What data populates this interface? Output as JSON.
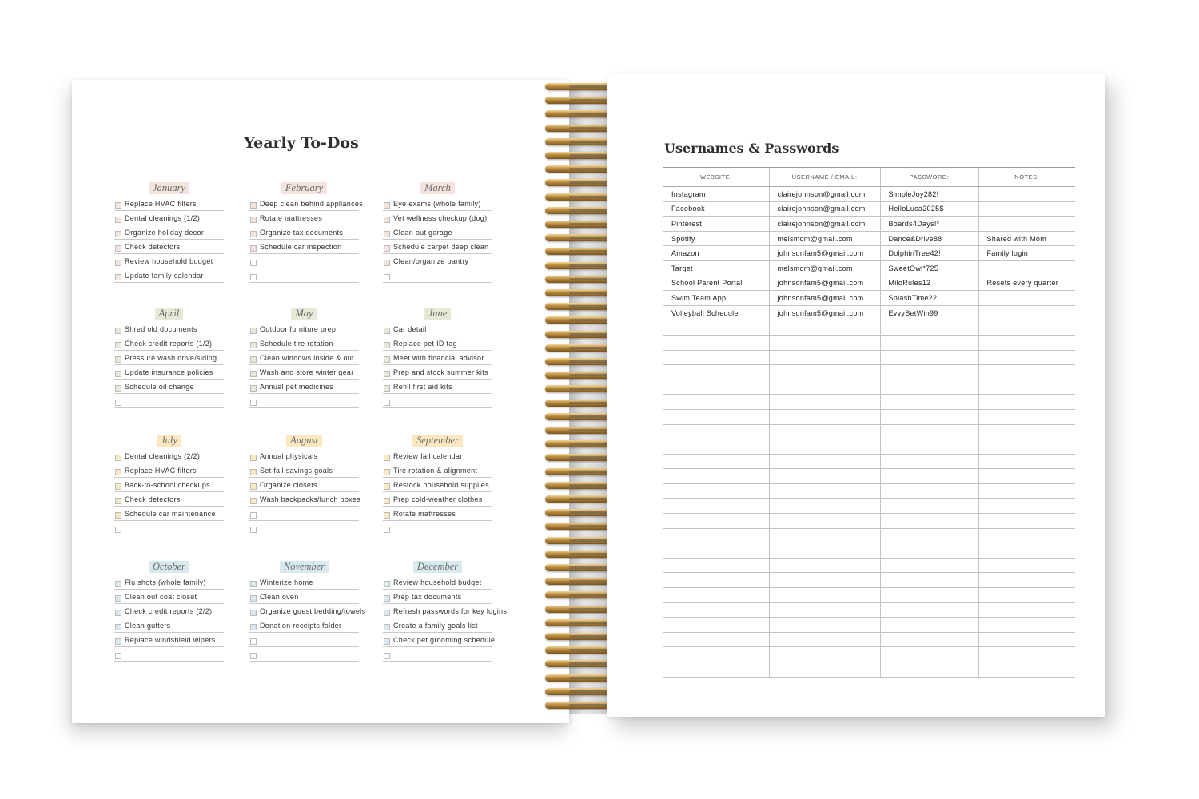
{
  "left_page": {
    "title": "Yearly To-Dos",
    "months": [
      {
        "name": "January",
        "color": "#f3e4e0",
        "tasks": [
          "Replace HVAC filters",
          "Dental cleanings (1/2)",
          "Organize holiday decor",
          "Check detectors",
          "Review household budget",
          "Update family calendar"
        ]
      },
      {
        "name": "February",
        "color": "#f3e4e0",
        "tasks": [
          "Deep clean behind appliances",
          "Rotate mattresses",
          "Organize tax documents",
          "Schedule car inspection",
          "",
          ""
        ]
      },
      {
        "name": "March",
        "color": "#f3e4e0",
        "tasks": [
          "Eye exams (whole family)",
          "Vet wellness checkup (dog)",
          "Clean out garage",
          "Schedule carpet deep clean",
          "Clean/organize pantry",
          ""
        ]
      },
      {
        "name": "April",
        "color": "#e6e9d5",
        "tasks": [
          "Shred old documents",
          "Check credit reports (1/2)",
          "Pressure wash drive/siding",
          "Update insurance policies",
          "Schedule oil change",
          ""
        ]
      },
      {
        "name": "May",
        "color": "#e6e9d5",
        "tasks": [
          "Outdoor furniture prep",
          "Schedule tire rotation",
          "Clean windows inside & out",
          "Wash and store winter gear",
          "Annual pet medicines",
          ""
        ]
      },
      {
        "name": "June",
        "color": "#e6e9d5",
        "tasks": [
          "Car detail",
          "Replace pet ID tag",
          "Meet with financial advisor",
          "Prep and stock summer kits",
          "Refill first aid kits",
          ""
        ]
      },
      {
        "name": "July",
        "color": "#fbe8c0",
        "tasks": [
          "Dental cleanings (2/2)",
          "Replace HVAC filters",
          "Back-to-school checkups",
          "Check detectors",
          "Schedule car maintenance",
          ""
        ]
      },
      {
        "name": "August",
        "color": "#fbe8c0",
        "tasks": [
          "Annual physicals",
          "Set fall savings goals",
          "Organize closets",
          "Wash backpacks/lunch boxes",
          "",
          ""
        ]
      },
      {
        "name": "September",
        "color": "#fbe8c0",
        "tasks": [
          "Review fall calendar",
          "Tire rotation & alignment",
          "Restock household supplies",
          "Prep cold-weather clothes",
          "Rotate mattresses",
          ""
        ]
      },
      {
        "name": "October",
        "color": "#d9eaee",
        "tasks": [
          "Flu shots (whole family)",
          "Clean out coat closet",
          "Check credit reports (2/2)",
          "Clean gutters",
          "Replace windshield wipers",
          ""
        ]
      },
      {
        "name": "November",
        "color": "#d9eaee",
        "tasks": [
          "Winterize home",
          "Clean oven",
          "Organize guest bedding/towels",
          "Donation receipts folder",
          "",
          ""
        ]
      },
      {
        "name": "December",
        "color": "#d9eaee",
        "tasks": [
          "Review household budget",
          "Prep tax documents",
          "Refresh passwords for key logins",
          "Create a family goals list",
          "Check pet grooming schedule",
          ""
        ]
      }
    ]
  },
  "right_page": {
    "title": "Usernames & Passwords",
    "columns": [
      "WEBSITE:",
      "USERNAME / EMAIL:",
      "PASSWORD:",
      "NOTES:"
    ],
    "rows": [
      [
        "Instagram",
        "clairejohnson@gmail.com",
        "SimpleJoy282!",
        ""
      ],
      [
        "Facebook",
        "clairejohnson@gmail.com",
        "HelloLuca2025$",
        ""
      ],
      [
        "Pinterest",
        "clairejohnson@gmail.com",
        "Boards4Days!*",
        ""
      ],
      [
        "Spotify",
        "melsmom@gmail.com",
        "Dance&Drive88",
        "Shared with Mom"
      ],
      [
        "Amazon",
        "johnsonfam5@gmail.com",
        "DolphinTree42!",
        "Family login"
      ],
      [
        "Target",
        "melsmom@gmail.com",
        "SweetOwl*725",
        ""
      ],
      [
        "School Parent Portal",
        "johnsonfam5@gmail.com",
        "MiloRules12",
        "Resets every quarter"
      ],
      [
        "Swim Team App",
        "johnsonfam5@gmail.com",
        "SplashTime22!",
        ""
      ],
      [
        "Volleyball Schedule",
        "johnsonfam5@gmail.com",
        "EvvySetWin99",
        ""
      ]
    ]
  }
}
